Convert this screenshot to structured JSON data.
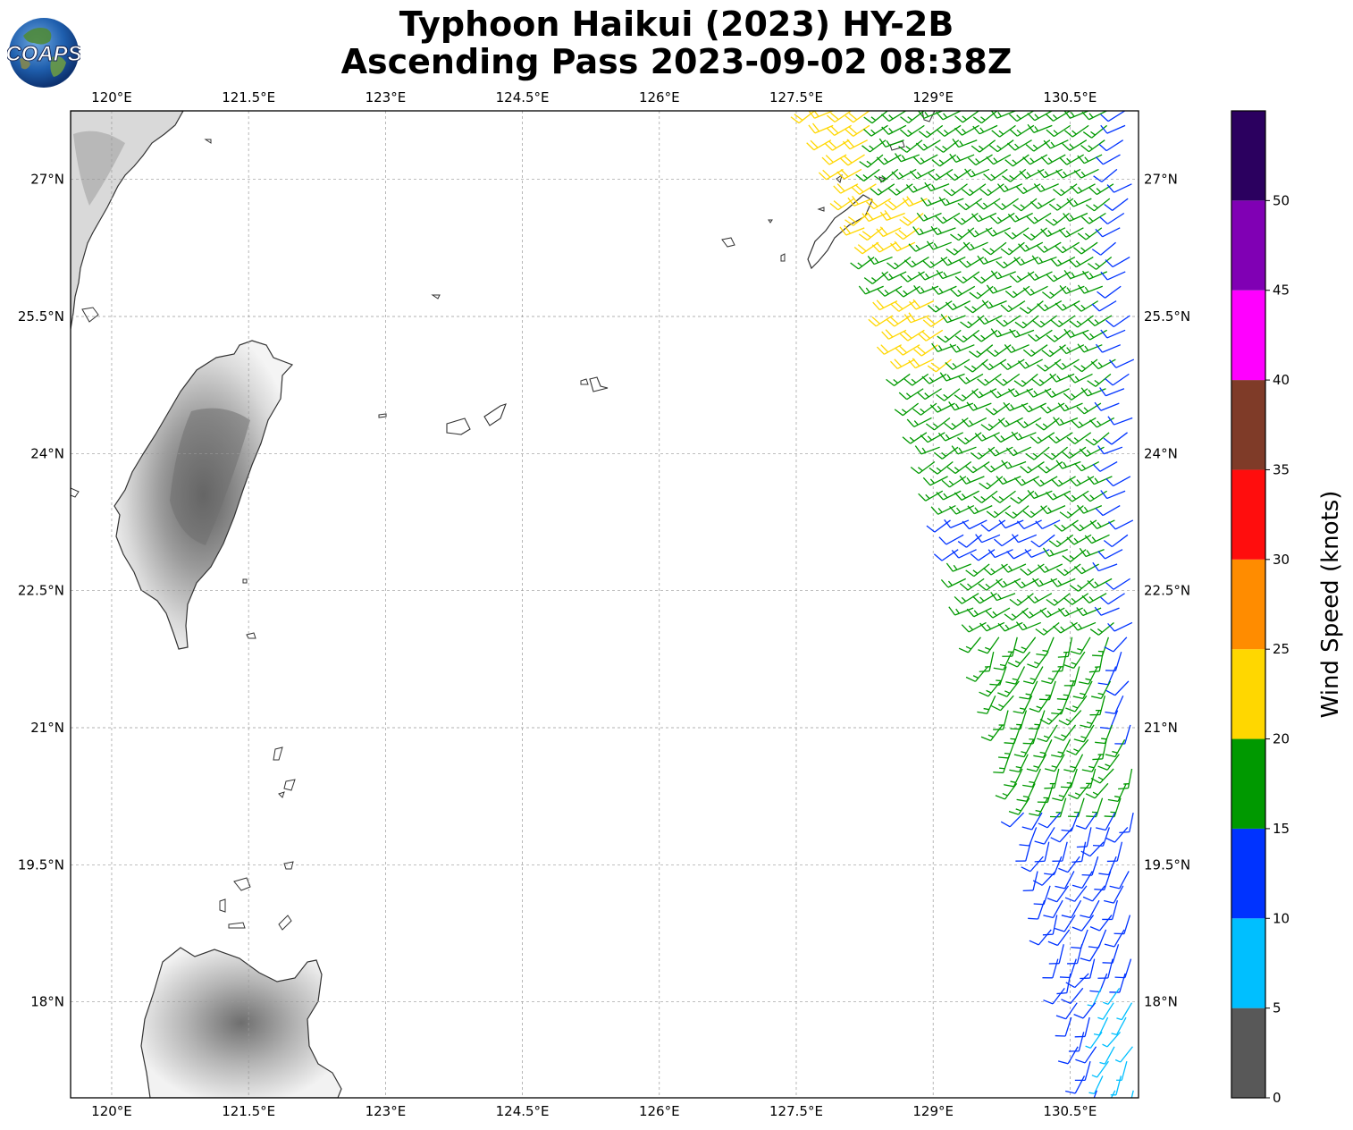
{
  "title": {
    "line1": "Typhoon Haikui (2023) HY-2B",
    "line2": "Ascending Pass 2023-09-02 08:38Z"
  },
  "logo": {
    "text": "COAPS"
  },
  "map": {
    "lon_ticks": [
      "120°E",
      "121.5°E",
      "123°E",
      "124.5°E",
      "126°E",
      "127.5°E",
      "129°E",
      "130.5°E"
    ],
    "lat_ticks": [
      "27°N",
      "25.5°N",
      "24°N",
      "22.5°N",
      "21°N",
      "19.5°N",
      "18°N"
    ],
    "lon_range": [
      119.55,
      131.25
    ],
    "lat_range": [
      16.95,
      27.75
    ],
    "gridlines": true
  },
  "colorbar": {
    "label": "Wind Speed (knots)",
    "tick_labels": [
      "0",
      "5",
      "10",
      "15",
      "20",
      "25",
      "30",
      "35",
      "40",
      "45",
      "50"
    ],
    "bins": [
      {
        "min": 0,
        "max": 5,
        "color": "#585858"
      },
      {
        "min": 5,
        "max": 10,
        "color": "#00bfff"
      },
      {
        "min": 10,
        "max": 15,
        "color": "#0033ff"
      },
      {
        "min": 15,
        "max": 20,
        "color": "#009900"
      },
      {
        "min": 20,
        "max": 25,
        "color": "#ffd700"
      },
      {
        "min": 25,
        "max": 30,
        "color": "#ff8c00"
      },
      {
        "min": 30,
        "max": 35,
        "color": "#ff0d0d"
      },
      {
        "min": 35,
        "max": 40,
        "color": "#7f3b28"
      },
      {
        "min": 40,
        "max": 45,
        "color": "#ff00ff"
      },
      {
        "min": 45,
        "max": 50,
        "color": "#8000b4"
      },
      {
        "min": 50,
        "max": 55,
        "color": "#2b005f"
      }
    ]
  },
  "wind_swath": {
    "lat_range": [
      17.0,
      27.75
    ],
    "west_edge_lon_north": 127.7,
    "west_edge_lon_south": 130.7,
    "east_edge_lon": 131.25
  }
}
